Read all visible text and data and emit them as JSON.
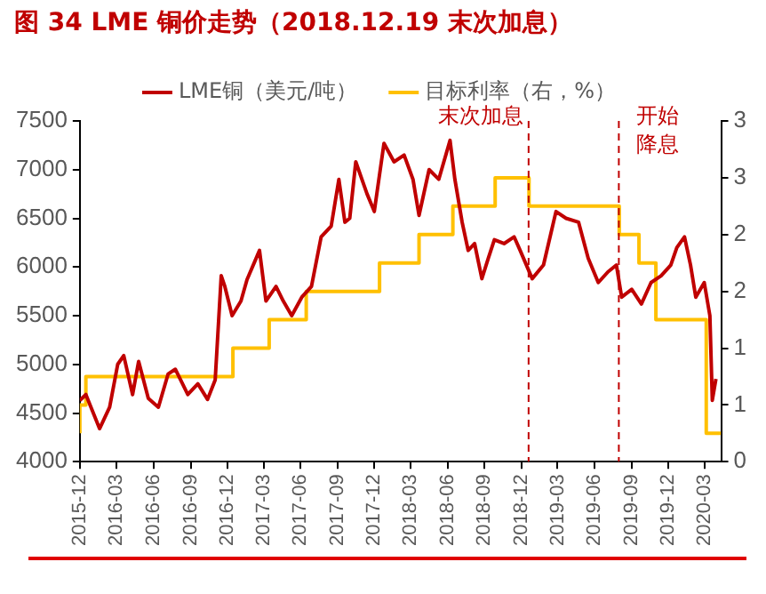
{
  "chart_data": {
    "type": "line",
    "title": "图 34 LME 铜价走势（2018.12.19 末次加息）",
    "xlim": [
      "2015-12-01",
      "2020-04-10"
    ],
    "xticks": [
      "2015-12",
      "2016-03",
      "2016-06",
      "2016-09",
      "2016-12",
      "2017-03",
      "2017-06",
      "2017-09",
      "2017-12",
      "2018-03",
      "2018-06",
      "2018-09",
      "2018-12",
      "2019-03",
      "2019-06",
      "2019-09",
      "2019-12",
      "2020-03"
    ],
    "ylim": [
      4000,
      7500
    ],
    "yticks": [
      4000,
      4500,
      5000,
      5500,
      6000,
      6500,
      7000,
      7500
    ],
    "y2lim": [
      0,
      3
    ],
    "y2ticks": [
      0,
      {
        "value": 0.5,
        "label": "1"
      },
      1,
      {
        "value": 1.5,
        "label": "2"
      },
      2,
      {
        "value": 2.5,
        "label": "3"
      },
      3
    ],
    "grid": false,
    "legend": "top",
    "series": [
      {
        "name": "LME铜（美元/吨）",
        "type": "line",
        "color": "#c00000",
        "x": [
          "2015-12-01",
          "2015-12-16",
          "2016-01-19",
          "2016-02-13",
          "2016-03-04",
          "2016-03-19",
          "2016-04-10",
          "2016-04-25",
          "2016-05-19",
          "2016-06-13",
          "2016-07-07",
          "2016-07-25",
          "2016-08-25",
          "2016-09-19",
          "2016-10-13",
          "2016-11-01",
          "2016-11-16",
          "2016-11-25",
          "2016-12-13",
          "2017-01-04",
          "2017-01-19",
          "2017-02-19",
          "2017-03-07",
          "2017-04-01",
          "2017-04-19",
          "2017-05-10",
          "2017-06-04",
          "2017-06-28",
          "2017-07-22",
          "2017-08-16",
          "2017-09-04",
          "2017-09-19",
          "2017-10-01",
          "2017-10-16",
          "2017-11-13",
          "2017-12-01",
          "2017-12-25",
          "2018-01-19",
          "2018-02-13",
          "2018-03-07",
          "2018-03-22",
          "2018-04-16",
          "2018-05-10",
          "2018-06-07",
          "2018-06-19",
          "2018-07-07",
          "2018-07-22",
          "2018-08-07",
          "2018-08-25",
          "2018-09-10",
          "2018-09-25",
          "2018-10-19",
          "2018-11-13",
          "2018-11-28",
          "2018-12-28",
          "2019-01-25",
          "2019-02-25",
          "2019-03-22",
          "2019-04-22",
          "2019-05-16",
          "2019-06-10",
          "2019-07-04",
          "2019-07-25",
          "2019-08-07",
          "2019-09-01",
          "2019-09-25",
          "2019-10-19",
          "2019-11-13",
          "2019-12-07",
          "2019-12-22",
          "2020-01-10",
          "2020-01-25",
          "2020-02-07",
          "2020-02-28",
          "2020-03-13",
          "2020-03-19",
          "2020-03-28"
        ],
        "values": [
          4630,
          4690,
          4340,
          4560,
          5000,
          5090,
          4690,
          5030,
          4650,
          4560,
          4900,
          4950,
          4690,
          4800,
          4640,
          4840,
          5910,
          5800,
          5500,
          5650,
          5870,
          6170,
          5650,
          5800,
          5650,
          5500,
          5690,
          5800,
          6310,
          6420,
          6900,
          6460,
          6500,
          7080,
          6750,
          6570,
          7270,
          7080,
          7150,
          6900,
          6530,
          7000,
          6900,
          7300,
          6900,
          6460,
          6170,
          6240,
          5880,
          6090,
          6280,
          6240,
          6310,
          6170,
          5880,
          6020,
          6570,
          6500,
          6460,
          6090,
          5840,
          5950,
          6020,
          5690,
          5770,
          5620,
          5840,
          5910,
          6020,
          6200,
          6310,
          6020,
          5690,
          5840,
          5500,
          4630,
          4850
        ]
      },
      {
        "name": "目标利率（右，%）",
        "type": "step",
        "axis": "y2",
        "color": "#ffc000",
        "x": [
          "2015-12-01",
          "2015-12-16",
          "2016-12-15",
          "2017-03-15",
          "2017-06-15",
          "2017-12-14",
          "2018-03-22",
          "2018-06-14",
          "2018-09-27",
          "2018-12-20",
          "2019-08-01",
          "2019-09-19",
          "2019-10-31",
          "2020-03-04",
          "2020-03-16",
          "2020-04-10"
        ],
        "values": [
          0.25,
          0.5,
          0.75,
          1.0,
          1.25,
          1.5,
          1.75,
          2.0,
          2.25,
          2.5,
          2.25,
          2.0,
          1.75,
          1.25,
          0.25,
          0.25
        ]
      }
    ],
    "ref_lines": [
      {
        "axis": "x",
        "value": "2018-12-19",
        "label": "末次加息",
        "color": "#c00000",
        "line_style": "dashed"
      },
      {
        "axis": "x",
        "value": "2019-07-31",
        "label": "开始降息",
        "color": "#c00000",
        "line_style": "dashed"
      }
    ]
  }
}
